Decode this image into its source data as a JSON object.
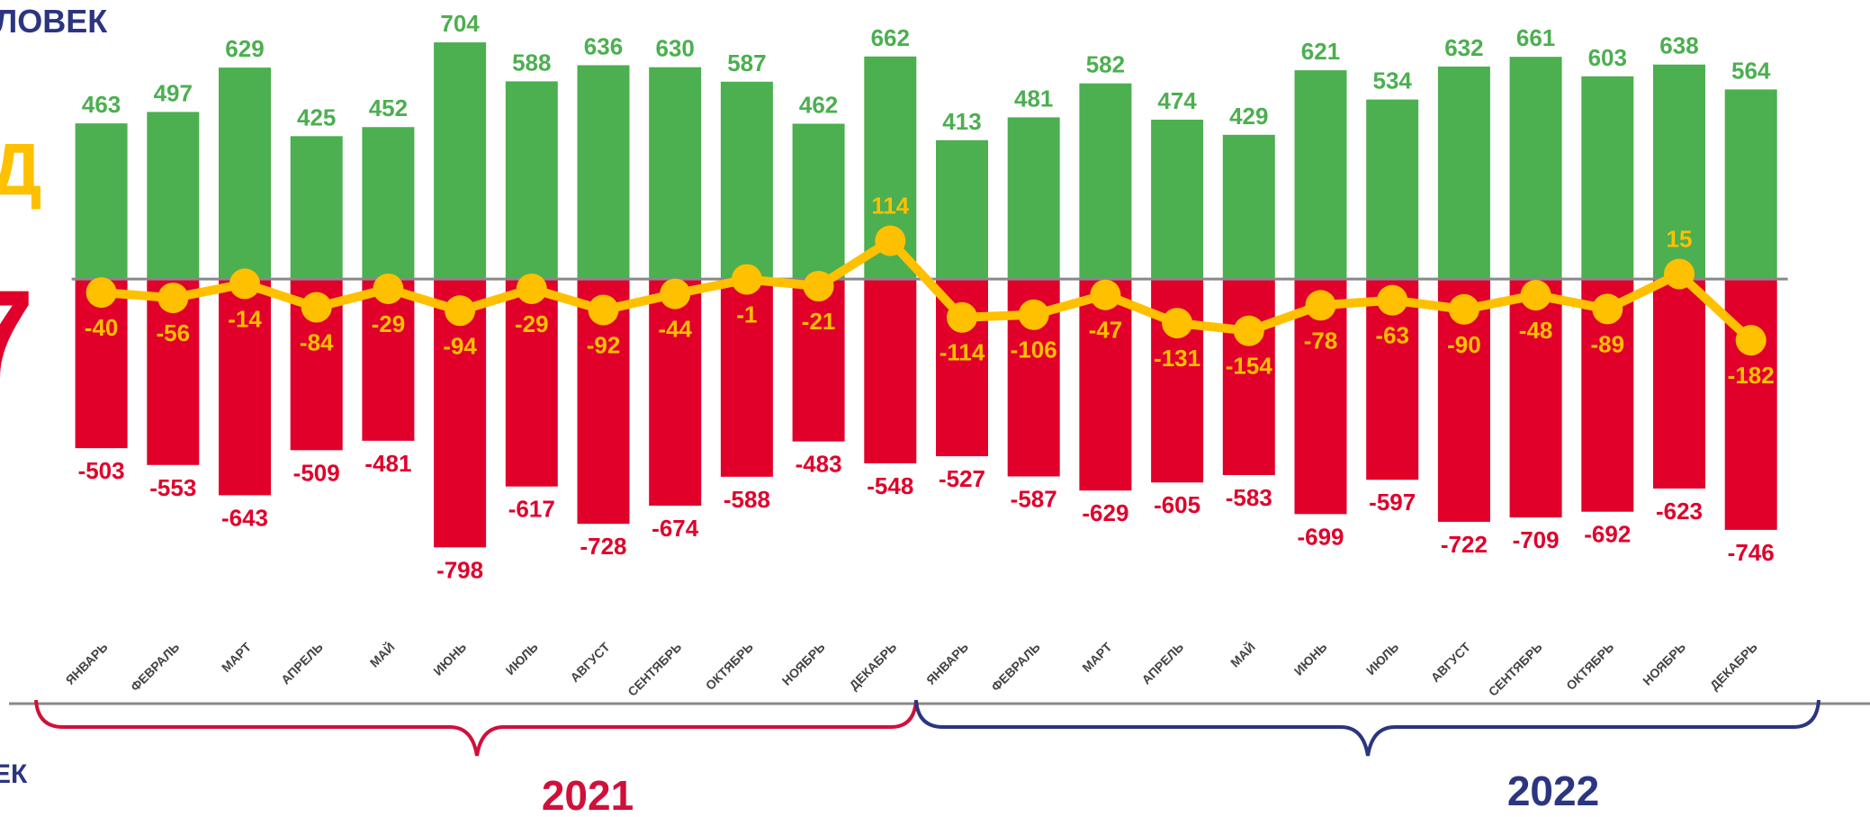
{
  "fragments": [
    "ЛОВЕК",
    "Д",
    "7",
    "ЕК"
  ],
  "chart_data": {
    "type": "bar",
    "categories": [
      "ЯНВАРЬ",
      "ФЕВРАЛЬ",
      "МАРТ",
      "АПРЕЛЬ",
      "МАЙ",
      "ИЮНЬ",
      "ИЮЛЬ",
      "АВГУСТ",
      "СЕНТЯБРЬ",
      "ОКТЯБРЬ",
      "НОЯБРЬ",
      "ДЕКАБРЬ",
      "ЯНВАРЬ",
      "ФЕВРАЛЬ",
      "МАРТ",
      "АПРЕЛЬ",
      "МАЙ",
      "ИЮНЬ",
      "ИЮЛЬ",
      "АВГУСТ",
      "СЕНТЯБРЬ",
      "ОКТЯБРЬ",
      "НОЯБРЬ",
      "ДЕКАБРЬ"
    ],
    "series": [
      {
        "type": "bar",
        "color": "#4caf50",
        "values": [
          463,
          497,
          629,
          425,
          452,
          704,
          588,
          636,
          630,
          587,
          462,
          662,
          413,
          481,
          582,
          474,
          429,
          621,
          534,
          632,
          661,
          603,
          638,
          564
        ]
      },
      {
        "type": "bar",
        "color": "#e0002a",
        "values": [
          -503,
          -553,
          -643,
          -509,
          -481,
          -798,
          -617,
          -728,
          -674,
          -588,
          -483,
          -548,
          -527,
          -587,
          -629,
          -605,
          -583,
          -699,
          -597,
          -722,
          -709,
          -692,
          -623,
          -746
        ]
      },
      {
        "type": "line",
        "color": "#ffc000",
        "values": [
          -40,
          -56,
          -14,
          -84,
          -29,
          -94,
          -29,
          -92,
          -44,
          -1,
          -21,
          114,
          -114,
          -106,
          -47,
          -131,
          -154,
          -78,
          -63,
          -90,
          -48,
          -89,
          15,
          -182
        ]
      }
    ],
    "groups": [
      "2021",
      "2022"
    ],
    "ylim": [
      -1600,
      830
    ]
  }
}
